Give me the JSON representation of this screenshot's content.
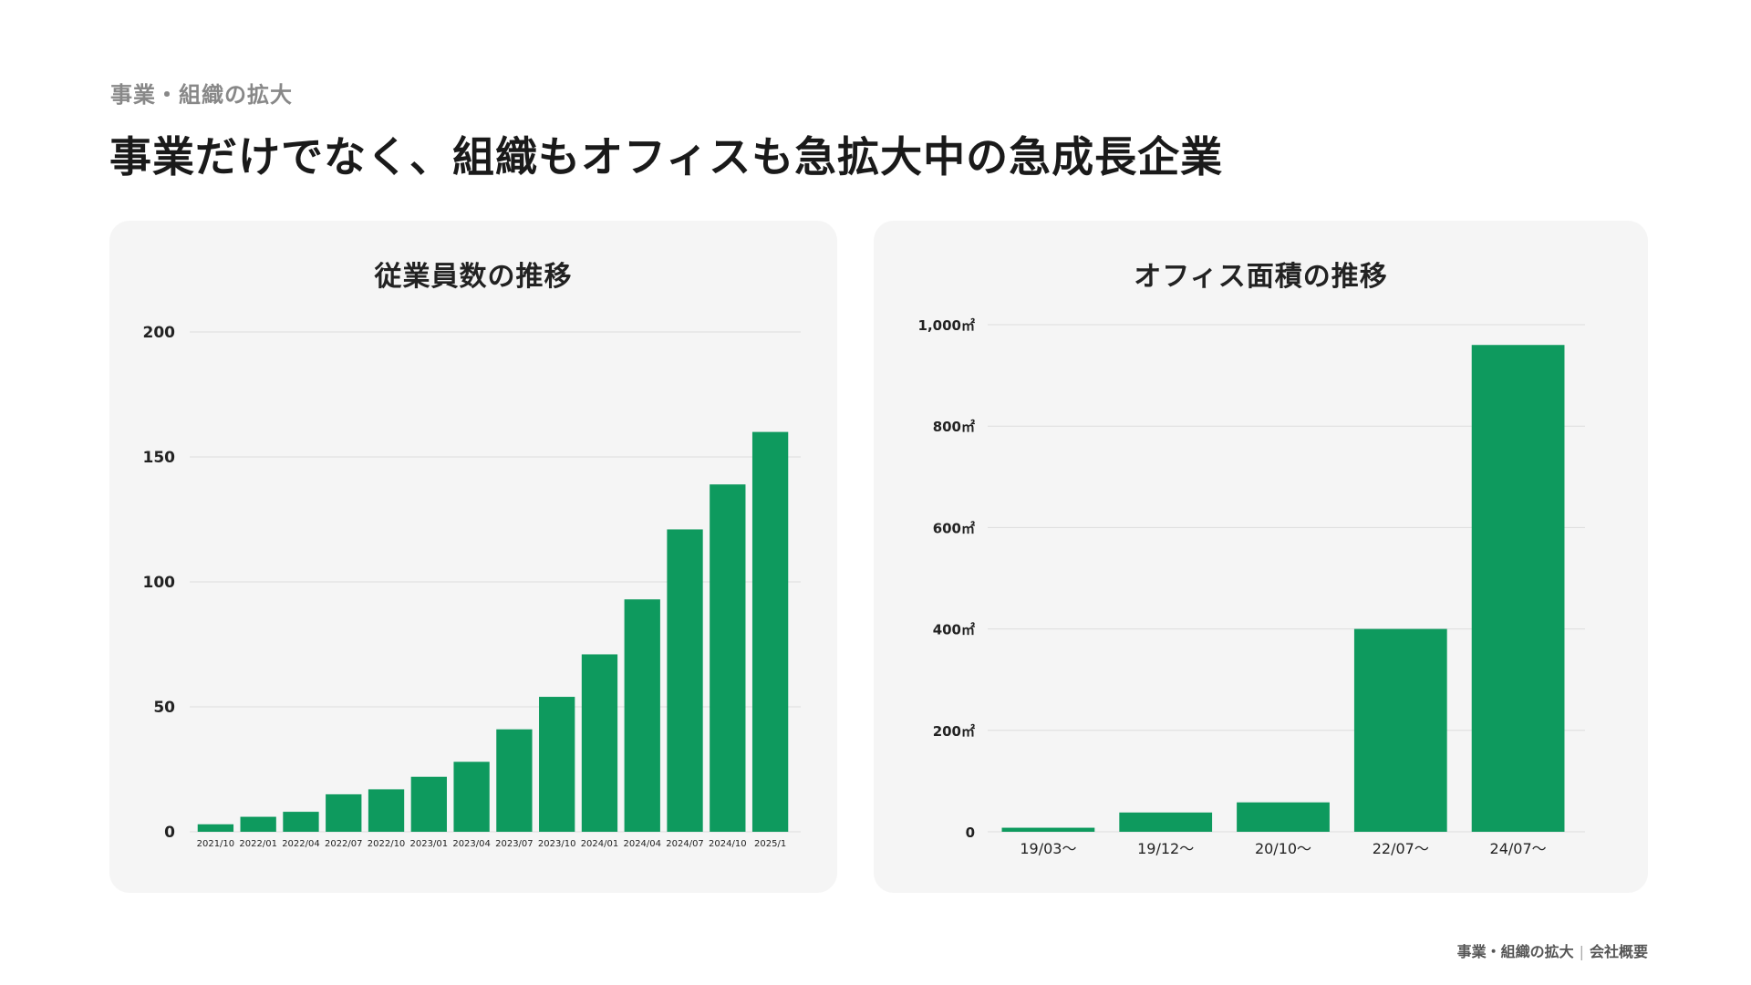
{
  "header": {
    "section_label": "事業・組織の拡大",
    "title": "事業だけでなく、組織もオフィスも急拡大中の急成長企業"
  },
  "footer": {
    "section": "事業・組織の拡大",
    "separator": "|",
    "page": "会社概要"
  },
  "colors": {
    "bar": "#0e9a5e",
    "card_background": "#f5f5f5",
    "grid": "#dddddd"
  },
  "chart_data": [
    {
      "type": "bar",
      "title": "従業員数の推移",
      "categories": [
        "2021/10",
        "2022/01",
        "2022/04",
        "2022/07",
        "2022/10",
        "2023/01",
        "2023/04",
        "2023/07",
        "2023/10",
        "2024/01",
        "2024/04",
        "2024/07",
        "2024/10",
        "2025/1"
      ],
      "values": [
        3,
        6,
        8,
        15,
        17,
        22,
        28,
        41,
        54,
        71,
        93,
        121,
        139,
        160
      ],
      "yticks": [
        "0",
        "50",
        "100",
        "150",
        "200"
      ],
      "ylim": [
        0,
        200
      ],
      "grid": true,
      "legend": "none"
    },
    {
      "type": "bar",
      "title": "オフィス面積の推移",
      "categories": [
        "19/03〜",
        "19/12〜",
        "20/10〜",
        "22/07〜",
        "24/07〜"
      ],
      "values": [
        8,
        38,
        58,
        400,
        960
      ],
      "yticks": [
        "0",
        "200㎡",
        "400㎡",
        "600㎡",
        "800㎡",
        "1,000㎡"
      ],
      "ylim": [
        0,
        1000
      ],
      "grid": true,
      "legend": "none"
    }
  ]
}
